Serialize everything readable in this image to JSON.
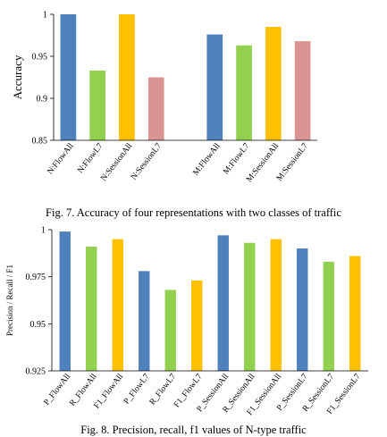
{
  "chart_data": [
    {
      "type": "bar",
      "ylabel": "Accuracy",
      "ylim": [
        0.85,
        1
      ],
      "yticks": [
        "1",
        "0.95",
        "0.9",
        "0.85"
      ],
      "categories": [
        "N:FlowAll",
        "N:FlowL7",
        "N:SessionAll",
        "N:SessionL7",
        "",
        "M:FlowAll",
        "M:FlowL7",
        "M:SessionAll",
        "M:SessionL7"
      ],
      "values": [
        1.0,
        0.933,
        1.0,
        0.925,
        null,
        0.976,
        0.963,
        0.985,
        0.968
      ],
      "colors": [
        "#4f81bd",
        "#92d050",
        "#ffc000",
        "#d99594",
        null,
        "#4f81bd",
        "#92d050",
        "#ffc000",
        "#d99594"
      ],
      "grid": false,
      "legend": "none"
    },
    {
      "type": "bar",
      "ylabel": "Precision / Recall / F1",
      "ylim": [
        0.925,
        1
      ],
      "yticks": [
        "1",
        "0.975",
        "0.95",
        "0.925"
      ],
      "categories": [
        "P_FlowAll",
        "R_FlowAll",
        "F1_FlowAll",
        "P_FlowL7",
        "R_FlowL7",
        "F1_FlowL7",
        "P_SessionAll",
        "R_SessionAll",
        "F1_SessionAll",
        "P_SessionL7",
        "R_SessionL7",
        "F1_SessionL7"
      ],
      "values": [
        0.999,
        0.991,
        0.995,
        0.978,
        0.968,
        0.973,
        0.997,
        0.993,
        0.995,
        0.99,
        0.983,
        0.986
      ],
      "colors": [
        "#4f81bd",
        "#92d050",
        "#ffc000",
        "#4f81bd",
        "#92d050",
        "#ffc000",
        "#4f81bd",
        "#92d050",
        "#ffc000",
        "#4f81bd",
        "#92d050",
        "#ffc000"
      ],
      "grid": false,
      "legend": "none"
    }
  ],
  "captions": {
    "fig7": "Fig. 7. Accuracy of four representations with two classes of traffic",
    "fig8": "Fig. 8. Precision, recall, f1 values of N-type traffic"
  }
}
